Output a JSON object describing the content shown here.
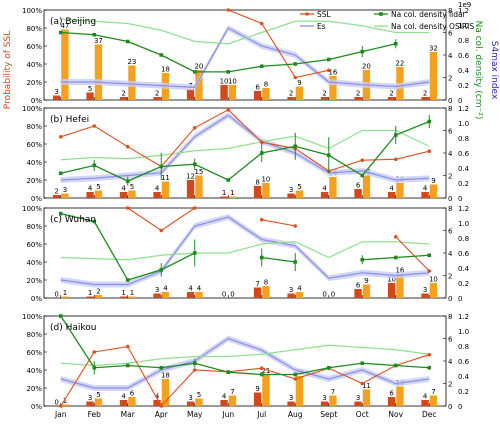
{
  "figure": {
    "months": [
      "Jan",
      "Feb",
      "Mar",
      "Apr",
      "May",
      "Jun",
      "Jul",
      "Aug",
      "Sept",
      "Oct",
      "Nov",
      "Dec"
    ],
    "left_axis_label": "Probability of SSL",
    "right_axis_label_na": "Na col. density (cm⁻²)",
    "right_axis_label_s4": "S4max index",
    "exponent_label": "1e9",
    "colors": {
      "ssl": "#e0501e",
      "es": "#8a8ee8",
      "es_band": "#c8cdf5",
      "lidar": "#1e8a1e",
      "osiris": "#8ee08e",
      "bar_red": "#d2481a",
      "bar_orange": "#f5a01e",
      "left_axis": "#d2481a",
      "na_axis": "#1e8a1e",
      "s4_axis": "#2828c8"
    },
    "legend": {
      "ssl": "SSL",
      "es": "Es",
      "lidar": "Na col. density lidar",
      "osiris": "Na col. density OSIRIS"
    }
  },
  "chart_data": [
    {
      "type": "line",
      "title": "(a) Beijing",
      "ylim_left": [
        0,
        100
      ],
      "yticks_left": [
        "0%",
        "20%",
        "40%",
        "60%",
        "80%",
        "100%"
      ],
      "ylim_na": [
        0,
        8
      ],
      "yticks_na": [
        "0",
        "2",
        "4",
        "6",
        "8"
      ],
      "ylim_s4": [
        0,
        1.2
      ],
      "yticks_s4": [
        "0",
        "0.2",
        "0.4",
        "0.6",
        "0.8",
        "1.0",
        "1.2"
      ],
      "ssl": [
        null,
        null,
        null,
        null,
        null,
        100,
        85,
        25,
        33,
        null,
        null,
        null
      ],
      "es": [
        20,
        20,
        18,
        16,
        14,
        80,
        60,
        50,
        20,
        17,
        15,
        20
      ],
      "lidar": [
        6.0,
        5.8,
        5.2,
        4.0,
        2.5,
        2.5,
        3.0,
        3.2,
        3.6,
        4.3,
        5.0,
        null
      ],
      "lidar_err": [
        0,
        0,
        0,
        0,
        0,
        0,
        0,
        0,
        0,
        0.5,
        0.4,
        0
      ],
      "osiris": [
        7.2,
        7.0,
        6.8,
        6.2,
        5.2,
        5.0,
        6.0,
        7.0,
        7.0,
        6.6,
        6.0,
        6.0
      ],
      "bar_red": [
        3,
        5,
        2,
        2,
        7,
        10,
        6,
        2,
        2,
        2,
        2,
        2
      ],
      "bar_orange": [
        47,
        37,
        23,
        18,
        20,
        10,
        8,
        9,
        16,
        20,
        22,
        32
      ],
      "ymax_bars": 60
    },
    {
      "type": "line",
      "title": "(b) Hefei",
      "ylim_left": [
        0,
        100
      ],
      "yticks_left": [
        "0%",
        "20%",
        "40%",
        "60%",
        "80%",
        "100%"
      ],
      "ylim_na": [
        0,
        8
      ],
      "yticks_na": [
        "0",
        "2",
        "4",
        "6",
        "8"
      ],
      "ylim_s4": [
        0,
        1.2
      ],
      "yticks_s4": [
        "0",
        "0.2",
        "0.4",
        "0.6",
        "0.8",
        "1.0",
        "1.2"
      ],
      "ssl": [
        68,
        80,
        57,
        35,
        78,
        98,
        62,
        55,
        30,
        42,
        43,
        52
      ],
      "es": [
        20,
        22,
        25,
        28,
        68,
        92,
        63,
        50,
        28,
        30,
        20,
        22
      ],
      "lidar": [
        2.2,
        2.9,
        1.5,
        2.8,
        3.0,
        1.6,
        4.0,
        4.6,
        3.8,
        2.0,
        5.6,
        6.8
      ],
      "lidar_err": [
        0,
        0.5,
        0.4,
        1.2,
        0.5,
        0,
        0.8,
        1.2,
        1.6,
        0,
        0.8,
        0.6
      ],
      "osiris": [
        3.4,
        3.6,
        3.5,
        3.8,
        4.2,
        4.4,
        5.0,
        5.5,
        4.4,
        6.0,
        6.0,
        4.6
      ],
      "bar_red": [
        2,
        4,
        4,
        4,
        12,
        1,
        8,
        3,
        4,
        6,
        4,
        4
      ],
      "bar_orange": [
        3,
        5,
        5,
        11,
        15,
        1,
        10,
        5,
        14,
        15,
        10,
        9
      ],
      "ymax_bars": 60
    },
    {
      "type": "line",
      "title": "(c) Wuhan",
      "ylim_left": [
        0,
        100
      ],
      "yticks_left": [
        "0%",
        "20%",
        "40%",
        "60%",
        "80%",
        "100%"
      ],
      "ylim_na": [
        0,
        8
      ],
      "yticks_na": [
        "0",
        "2",
        "4",
        "6",
        "8"
      ],
      "ylim_s4": [
        0,
        1.2
      ],
      "yticks_s4": [
        "0",
        "0.2",
        "0.4",
        "0.6",
        "0.8",
        "1.0",
        "1.2"
      ],
      "ssl": [
        null,
        null,
        100,
        75,
        100,
        null,
        87,
        80,
        null,
        null,
        68,
        30
      ],
      "es": [
        20,
        15,
        15,
        30,
        80,
        90,
        65,
        58,
        22,
        28,
        25,
        28
      ],
      "lidar": [
        7.5,
        6.8,
        1.6,
        2.5,
        4.0,
        null,
        3.6,
        3.2,
        null,
        3.4,
        3.6,
        3.8
      ],
      "lidar_err": [
        0,
        0,
        0,
        0.6,
        1.2,
        0,
        0.8,
        0.8,
        0,
        0.4,
        0,
        0
      ],
      "osiris": [
        3.6,
        3.5,
        3.4,
        3.8,
        4.0,
        4.0,
        4.8,
        5.0,
        3.6,
        5.0,
        5.0,
        4.8
      ],
      "bar_red": [
        0,
        1,
        1,
        3,
        4,
        0,
        7,
        3,
        0,
        6,
        10,
        3
      ],
      "bar_orange": [
        1,
        2,
        1,
        4,
        4,
        0,
        8,
        4,
        0,
        9,
        16,
        10
      ],
      "ymax_bars": 60
    },
    {
      "type": "line",
      "title": "(d) Haikou",
      "ylim_left": [
        0,
        100
      ],
      "yticks_left": [
        "0%",
        "20%",
        "40%",
        "60%",
        "80%",
        "100%"
      ],
      "ylim_na": [
        0,
        8
      ],
      "yticks_na": [
        "0",
        "2",
        "4",
        "6",
        "8"
      ],
      "ylim_s4": [
        0,
        1.2
      ],
      "yticks_s4": [
        "0",
        "0.2",
        "0.4",
        "0.6",
        "0.8",
        "1.0",
        "1.2"
      ],
      "ssl": [
        0,
        60,
        66,
        0,
        40,
        38,
        42,
        30,
        42,
        25,
        45,
        57
      ],
      "es": [
        30,
        20,
        20,
        40,
        50,
        75,
        62,
        40,
        30,
        40,
        25,
        30
      ],
      "lidar": [
        8.0,
        3.4,
        3.6,
        3.4,
        3.8,
        3.0,
        2.8,
        2.8,
        3.4,
        3.8,
        3.6,
        3.4
      ],
      "lidar_err": [
        0,
        0.6,
        0,
        0,
        0.4,
        0,
        0,
        0,
        0,
        0,
        0,
        0
      ],
      "osiris": [
        3.8,
        3.6,
        3.8,
        4.2,
        4.4,
        4.4,
        4.6,
        5.0,
        5.4,
        5.2,
        5.0,
        4.6
      ],
      "bar_red": [
        0,
        3,
        4,
        4,
        3,
        4,
        9,
        3,
        3,
        3,
        6,
        4
      ],
      "bar_orange": [
        1,
        5,
        6,
        18,
        5,
        7,
        21,
        20,
        7,
        11,
        13,
        7
      ],
      "ymax_bars": 60
    }
  ]
}
